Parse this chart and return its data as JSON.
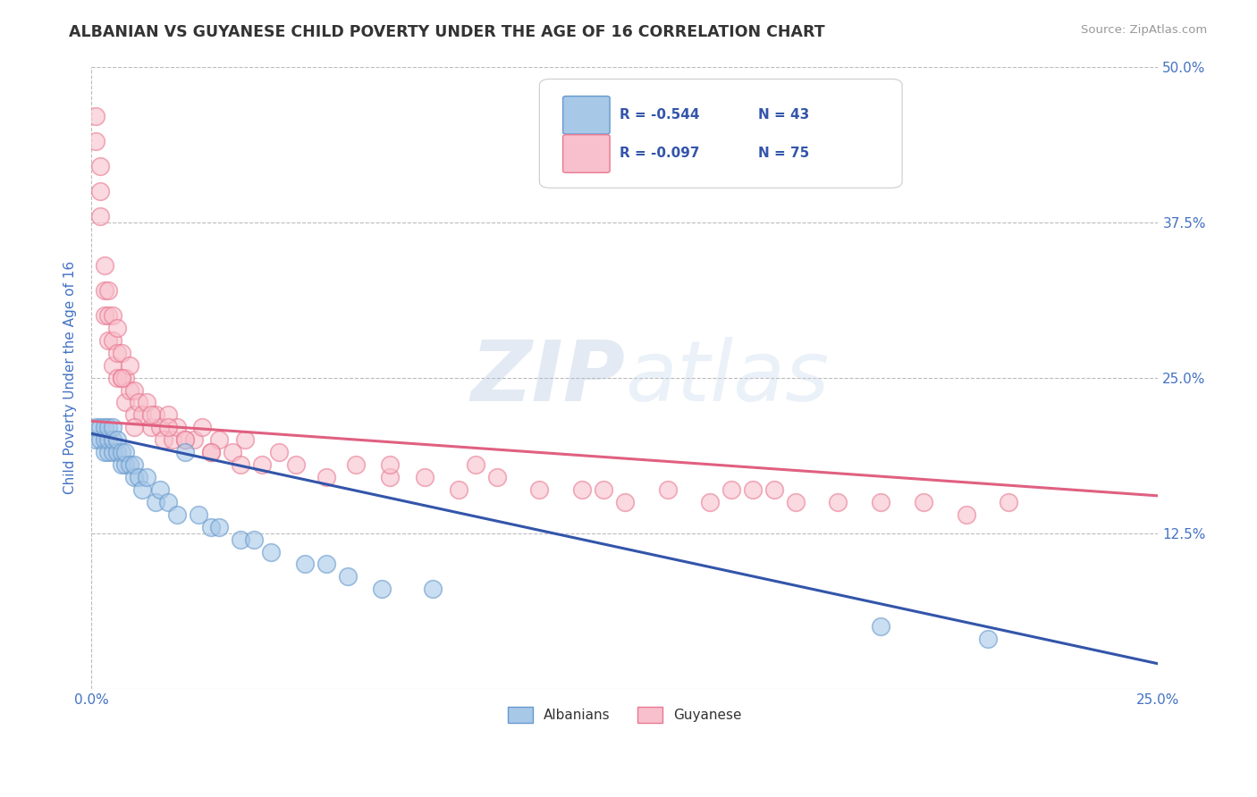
{
  "title": "ALBANIAN VS GUYANESE CHILD POVERTY UNDER THE AGE OF 16 CORRELATION CHART",
  "source": "Source: ZipAtlas.com",
  "ylabel": "Child Poverty Under the Age of 16",
  "xlim": [
    0.0,
    0.25
  ],
  "ylim": [
    0.0,
    0.5
  ],
  "xticks": [
    0.0,
    0.25
  ],
  "xticklabels": [
    "0.0%",
    "25.0%"
  ],
  "yticks_right": [
    0.0,
    0.125,
    0.25,
    0.375,
    0.5
  ],
  "yticklabels_right": [
    "",
    "12.5%",
    "25.0%",
    "37.5%",
    "50.0%"
  ],
  "legend_r_albanian": "R = -0.544",
  "legend_n_albanian": "N = 43",
  "legend_r_guyanese": "R = -0.097",
  "legend_n_guyanese": "N = 75",
  "legend_label_albanian": "Albanians",
  "legend_label_guyanese": "Guyanese",
  "albanian_dot_color": "#a8c8e8",
  "albanian_edge_color": "#6699cc",
  "guyanese_dot_color": "#f8c0cc",
  "guyanese_edge_color": "#e87890",
  "trend_albanian_color": "#3355aa",
  "trend_guyanese_color": "#e06080",
  "background_color": "#ffffff",
  "grid_color": "#bbbbbb",
  "title_color": "#333333",
  "axis_label_color": "#4472c4",
  "tick_label_color": "#4472c4",
  "watermark_zip_color": "#b8c8e0",
  "watermark_atlas_color": "#c8d8e8",
  "albanian_x": [
    0.001,
    0.001,
    0.002,
    0.002,
    0.003,
    0.003,
    0.003,
    0.004,
    0.004,
    0.004,
    0.005,
    0.005,
    0.005,
    0.006,
    0.006,
    0.007,
    0.007,
    0.008,
    0.008,
    0.009,
    0.01,
    0.01,
    0.011,
    0.012,
    0.013,
    0.015,
    0.016,
    0.018,
    0.02,
    0.022,
    0.025,
    0.028,
    0.03,
    0.035,
    0.038,
    0.042,
    0.05,
    0.055,
    0.06,
    0.068,
    0.08,
    0.185,
    0.21
  ],
  "albanian_y": [
    0.2,
    0.21,
    0.2,
    0.21,
    0.19,
    0.2,
    0.21,
    0.19,
    0.2,
    0.21,
    0.19,
    0.2,
    0.21,
    0.19,
    0.2,
    0.18,
    0.19,
    0.18,
    0.19,
    0.18,
    0.17,
    0.18,
    0.17,
    0.16,
    0.17,
    0.15,
    0.16,
    0.15,
    0.14,
    0.19,
    0.14,
    0.13,
    0.13,
    0.12,
    0.12,
    0.11,
    0.1,
    0.1,
    0.09,
    0.08,
    0.08,
    0.05,
    0.04
  ],
  "guyanese_x": [
    0.001,
    0.001,
    0.002,
    0.002,
    0.002,
    0.003,
    0.003,
    0.003,
    0.004,
    0.004,
    0.004,
    0.005,
    0.005,
    0.005,
    0.006,
    0.006,
    0.006,
    0.007,
    0.007,
    0.008,
    0.008,
    0.009,
    0.009,
    0.01,
    0.01,
    0.011,
    0.012,
    0.013,
    0.014,
    0.015,
    0.016,
    0.017,
    0.018,
    0.019,
    0.02,
    0.022,
    0.024,
    0.026,
    0.028,
    0.03,
    0.033,
    0.036,
    0.04,
    0.044,
    0.048,
    0.055,
    0.062,
    0.07,
    0.078,
    0.086,
    0.095,
    0.105,
    0.115,
    0.125,
    0.135,
    0.145,
    0.155,
    0.165,
    0.175,
    0.185,
    0.195,
    0.205,
    0.215,
    0.07,
    0.09,
    0.12,
    0.15,
    0.16,
    0.035,
    0.028,
    0.022,
    0.018,
    0.014,
    0.01,
    0.007
  ],
  "guyanese_y": [
    0.44,
    0.46,
    0.38,
    0.4,
    0.42,
    0.32,
    0.34,
    0.3,
    0.28,
    0.3,
    0.32,
    0.26,
    0.28,
    0.3,
    0.25,
    0.27,
    0.29,
    0.25,
    0.27,
    0.23,
    0.25,
    0.24,
    0.26,
    0.22,
    0.24,
    0.23,
    0.22,
    0.23,
    0.21,
    0.22,
    0.21,
    0.2,
    0.22,
    0.2,
    0.21,
    0.2,
    0.2,
    0.21,
    0.19,
    0.2,
    0.19,
    0.2,
    0.18,
    0.19,
    0.18,
    0.17,
    0.18,
    0.17,
    0.17,
    0.16,
    0.17,
    0.16,
    0.16,
    0.15,
    0.16,
    0.15,
    0.16,
    0.15,
    0.15,
    0.15,
    0.15,
    0.14,
    0.15,
    0.18,
    0.18,
    0.16,
    0.16,
    0.16,
    0.18,
    0.19,
    0.2,
    0.21,
    0.22,
    0.21,
    0.25
  ],
  "trend_alb_x0": 0.0,
  "trend_alb_y0": 0.205,
  "trend_alb_x1": 0.25,
  "trend_alb_y1": 0.02,
  "trend_guy_x0": 0.0,
  "trend_guy_y0": 0.215,
  "trend_guy_x1": 0.25,
  "trend_guy_y1": 0.155
}
